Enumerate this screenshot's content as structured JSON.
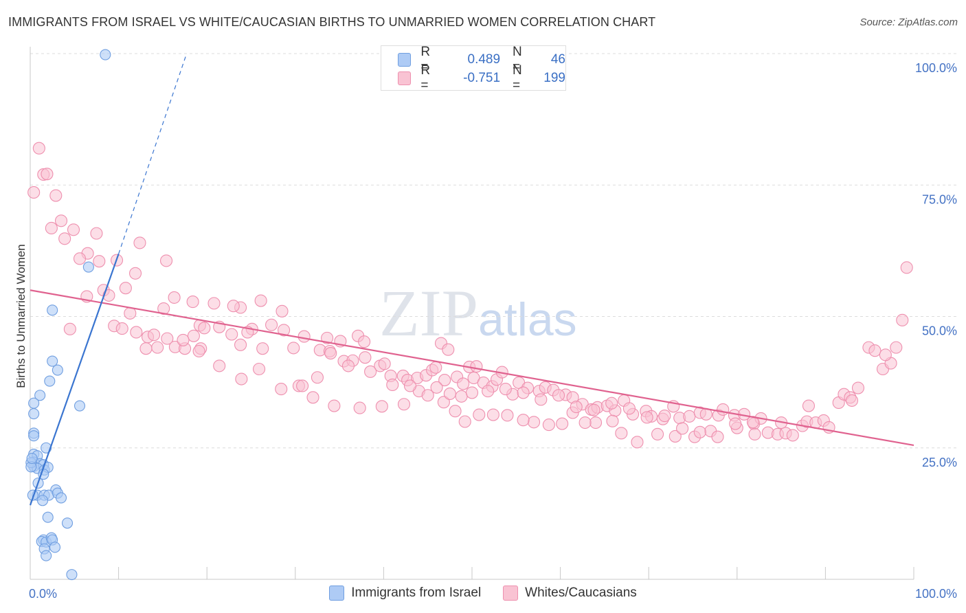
{
  "header": {
    "title": "IMMIGRANTS FROM ISRAEL VS WHITE/CAUCASIAN BIRTHS TO UNMARRIED WOMEN CORRELATION CHART",
    "source": "Source: ZipAtlas.com"
  },
  "watermark": {
    "zip": "ZIP",
    "atlas": "atlas"
  },
  "legend": {
    "rows": [
      {
        "r_label": "R =",
        "r_value": "0.489",
        "n_label": "N =",
        "n_value": "46",
        "color": "#aecbf5",
        "border": "#6f9ee0"
      },
      {
        "r_label": "R =",
        "r_value": "-0.751",
        "n_label": "N =",
        "n_value": "199",
        "color": "#f9c3d3",
        "border": "#ee8fae"
      }
    ]
  },
  "bottom_legend": [
    {
      "label": "Immigrants from Israel",
      "color": "#aecbf5",
      "border": "#6f9ee0"
    },
    {
      "label": "Whites/Caucasians",
      "color": "#f9c3d3",
      "border": "#ee8fae"
    }
  ],
  "chart_data": {
    "type": "scatter",
    "ylabel": "Births to Unmarried Women",
    "x_tick_labels": [
      "0.0%",
      "100.0%"
    ],
    "y_tick_labels": [
      "100.0%",
      "75.0%",
      "50.0%",
      "25.0%"
    ],
    "xlim": [
      0,
      100
    ],
    "ylim": [
      0,
      100
    ],
    "grid": true,
    "series": [
      {
        "name": "Immigrants from Israel",
        "color": "#6f9ee0",
        "fill": "#aecbf5",
        "trend": {
          "x": [
            0.0,
            10.0
          ],
          "y": [
            14.1,
            61.9
          ],
          "dash_to": [
            17.7,
            100.0
          ],
          "color": "#3a75d0"
        },
        "points": [
          [
            8.5,
            99.8
          ],
          [
            6.6,
            59.4
          ],
          [
            2.5,
            51.2
          ],
          [
            2.5,
            41.5
          ],
          [
            3.1,
            39.8
          ],
          [
            2.2,
            37.7
          ],
          [
            1.1,
            35.0
          ],
          [
            0.4,
            33.5
          ],
          [
            0.4,
            31.5
          ],
          [
            0.4,
            27.8
          ],
          [
            0.4,
            27.3
          ],
          [
            5.6,
            33.0
          ],
          [
            1.8,
            25.0
          ],
          [
            0.4,
            23.8
          ],
          [
            0.8,
            23.5
          ],
          [
            0.4,
            22.3
          ],
          [
            1.1,
            22.0
          ],
          [
            1.5,
            21.8
          ],
          [
            0.4,
            21.5
          ],
          [
            0.8,
            21.1
          ],
          [
            1.6,
            20.8
          ],
          [
            2.0,
            21.3
          ],
          [
            1.5,
            20.0
          ],
          [
            0.9,
            18.3
          ],
          [
            2.9,
            17.0
          ],
          [
            0.8,
            16.0
          ],
          [
            1.6,
            16.0
          ],
          [
            2.1,
            16.0
          ],
          [
            3.1,
            16.4
          ],
          [
            3.5,
            15.5
          ],
          [
            1.4,
            15.0
          ],
          [
            2.0,
            11.8
          ],
          [
            4.2,
            10.7
          ],
          [
            1.5,
            7.5
          ],
          [
            1.3,
            7.2
          ],
          [
            1.8,
            7.1
          ],
          [
            2.4,
            7.9
          ],
          [
            2.5,
            7.5
          ],
          [
            1.6,
            5.8
          ],
          [
            2.8,
            6.1
          ],
          [
            1.8,
            4.5
          ],
          [
            4.7,
            0.9
          ],
          [
            0.1,
            22.2
          ],
          [
            0.1,
            21.4
          ],
          [
            0.3,
            16.0
          ],
          [
            0.2,
            23.0
          ]
        ]
      },
      {
        "name": "Whites/Caucasians",
        "color": "#ee8fae",
        "fill": "#f9c3d3",
        "trend": {
          "x": [
            0.0,
            100.0
          ],
          "y": [
            55.0,
            25.5
          ],
          "color": "#e0628f"
        },
        "points": [
          [
            1.0,
            82.0
          ],
          [
            1.5,
            77.0
          ],
          [
            1.9,
            77.1
          ],
          [
            0.4,
            73.6
          ],
          [
            2.9,
            73.0
          ],
          [
            3.5,
            68.2
          ],
          [
            2.4,
            66.8
          ],
          [
            4.9,
            66.5
          ],
          [
            3.9,
            64.8
          ],
          [
            7.5,
            65.8
          ],
          [
            12.4,
            64.0
          ],
          [
            6.5,
            62.0
          ],
          [
            5.6,
            61.0
          ],
          [
            7.8,
            60.5
          ],
          [
            9.8,
            60.7
          ],
          [
            15.4,
            60.6
          ],
          [
            11.9,
            58.2
          ],
          [
            8.3,
            55.0
          ],
          [
            10.8,
            55.4
          ],
          [
            6.4,
            53.8
          ],
          [
            8.9,
            54.0
          ],
          [
            16.3,
            53.6
          ],
          [
            18.4,
            52.8
          ],
          [
            11.3,
            50.6
          ],
          [
            15.1,
            51.5
          ],
          [
            20.8,
            52.5
          ],
          [
            23.8,
            51.7
          ],
          [
            26.1,
            53.0
          ],
          [
            28.5,
            51.0
          ],
          [
            4.5,
            47.6
          ],
          [
            9.5,
            48.2
          ],
          [
            10.4,
            47.7
          ],
          [
            13.3,
            46.1
          ],
          [
            14.0,
            46.5
          ],
          [
            19.2,
            48.3
          ],
          [
            19.7,
            47.8
          ],
          [
            21.4,
            48.0
          ],
          [
            25.1,
            47.6
          ],
          [
            27.3,
            48.4
          ],
          [
            28.7,
            47.4
          ],
          [
            24.6,
            47.0
          ],
          [
            22.8,
            46.6
          ],
          [
            18.5,
            46.3
          ],
          [
            14.4,
            44.1
          ],
          [
            16.4,
            44.2
          ],
          [
            13.1,
            43.9
          ],
          [
            17.5,
            43.9
          ],
          [
            19.3,
            43.9
          ],
          [
            23.8,
            44.6
          ],
          [
            26.3,
            43.9
          ],
          [
            29.8,
            44.0
          ],
          [
            31.0,
            46.2
          ],
          [
            33.6,
            45.9
          ],
          [
            35.1,
            45.3
          ],
          [
            37.1,
            46.3
          ],
          [
            37.8,
            45.2
          ],
          [
            32.8,
            43.6
          ],
          [
            33.9,
            43.4
          ],
          [
            35.5,
            41.5
          ],
          [
            36.5,
            41.6
          ],
          [
            37.9,
            42.2
          ],
          [
            39.6,
            40.6
          ],
          [
            40.1,
            41.0
          ],
          [
            40.8,
            38.7
          ],
          [
            42.2,
            38.7
          ],
          [
            42.7,
            37.9
          ],
          [
            43.8,
            38.3
          ],
          [
            44.8,
            38.8
          ],
          [
            45.5,
            39.8
          ],
          [
            45.9,
            40.3
          ],
          [
            46.9,
            37.9
          ],
          [
            46.5,
            44.9
          ],
          [
            47.3,
            43.7
          ],
          [
            48.3,
            38.5
          ],
          [
            49.0,
            37.2
          ],
          [
            49.7,
            40.4
          ],
          [
            50.5,
            40.5
          ],
          [
            50.2,
            38.3
          ],
          [
            51.3,
            37.4
          ],
          [
            52.3,
            36.7
          ],
          [
            52.8,
            38.0
          ],
          [
            53.4,
            39.4
          ],
          [
            54.6,
            35.2
          ],
          [
            55.3,
            37.4
          ],
          [
            56.3,
            36.4
          ],
          [
            57.6,
            35.8
          ],
          [
            58.3,
            36.5
          ],
          [
            59.2,
            36.0
          ],
          [
            60.6,
            35.1
          ],
          [
            61.4,
            34.6
          ],
          [
            62.5,
            33.3
          ],
          [
            63.5,
            32.3
          ],
          [
            64.2,
            32.7
          ],
          [
            65.3,
            33.0
          ],
          [
            66.2,
            32.1
          ],
          [
            67.2,
            34.0
          ],
          [
            68.2,
            31.4
          ],
          [
            69.7,
            32.0
          ],
          [
            70.3,
            31.0
          ],
          [
            71.6,
            30.5
          ],
          [
            72.8,
            32.9
          ],
          [
            73.5,
            30.7
          ],
          [
            74.6,
            31.0
          ],
          [
            75.8,
            31.7
          ],
          [
            76.5,
            31.4
          ],
          [
            77.9,
            31.2
          ],
          [
            78.4,
            32.3
          ],
          [
            79.7,
            31.2
          ],
          [
            80.8,
            31.4
          ],
          [
            81.9,
            29.6
          ],
          [
            82.7,
            30.6
          ],
          [
            83.5,
            27.9
          ],
          [
            84.6,
            27.6
          ],
          [
            85.5,
            27.8
          ],
          [
            86.3,
            27.4
          ],
          [
            87.4,
            29.2
          ],
          [
            87.9,
            30.0
          ],
          [
            88.9,
            29.8
          ],
          [
            89.8,
            30.2
          ],
          [
            90.4,
            28.9
          ],
          [
            91.5,
            33.6
          ],
          [
            92.1,
            35.2
          ],
          [
            92.8,
            34.6
          ],
          [
            93.7,
            36.4
          ],
          [
            94.9,
            44.1
          ],
          [
            95.6,
            43.5
          ],
          [
            96.5,
            40.0
          ],
          [
            97.4,
            41.1
          ],
          [
            98.0,
            44.1
          ],
          [
            98.7,
            49.3
          ],
          [
            99.2,
            59.3
          ],
          [
            96.8,
            42.7
          ],
          [
            93.0,
            34.0
          ],
          [
            88.1,
            33.0
          ],
          [
            85.0,
            29.8
          ],
          [
            82.0,
            27.6
          ],
          [
            80.0,
            28.8
          ],
          [
            77.0,
            28.2
          ],
          [
            75.2,
            27.1
          ],
          [
            73.0,
            27.2
          ],
          [
            71.0,
            27.6
          ],
          [
            68.7,
            26.1
          ],
          [
            66.9,
            27.8
          ],
          [
            65.9,
            30.1
          ],
          [
            64.0,
            29.8
          ],
          [
            62.8,
            29.8
          ],
          [
            61.4,
            31.7
          ],
          [
            60.2,
            29.6
          ],
          [
            58.7,
            29.4
          ],
          [
            57.0,
            29.9
          ],
          [
            55.8,
            30.3
          ],
          [
            54.0,
            31.2
          ],
          [
            52.4,
            31.3
          ],
          [
            50.8,
            31.3
          ],
          [
            49.2,
            30.0
          ],
          [
            48.1,
            32.0
          ],
          [
            46.8,
            33.7
          ],
          [
            44.0,
            35.8
          ],
          [
            42.3,
            33.3
          ],
          [
            39.8,
            32.9
          ],
          [
            37.3,
            32.6
          ],
          [
            34.4,
            33.0
          ],
          [
            32.0,
            34.6
          ],
          [
            30.4,
            36.8
          ],
          [
            28.4,
            36.2
          ],
          [
            25.9,
            40.0
          ],
          [
            23.9,
            38.1
          ],
          [
            21.4,
            40.6
          ],
          [
            19.1,
            43.4
          ],
          [
            17.3,
            45.5
          ],
          [
            15.5,
            45.8
          ],
          [
            12.0,
            47.0
          ],
          [
            23.0,
            52.0
          ],
          [
            30.8,
            36.8
          ],
          [
            32.5,
            38.4
          ],
          [
            34.0,
            43.0
          ],
          [
            36.0,
            40.6
          ],
          [
            38.5,
            39.5
          ],
          [
            41.0,
            37.0
          ],
          [
            43.0,
            36.8
          ],
          [
            45.0,
            35.0
          ],
          [
            46.0,
            36.5
          ],
          [
            47.5,
            35.3
          ],
          [
            48.8,
            34.8
          ],
          [
            50.0,
            35.5
          ],
          [
            51.8,
            35.8
          ],
          [
            53.8,
            36.2
          ],
          [
            55.8,
            35.5
          ],
          [
            57.8,
            34.2
          ],
          [
            59.8,
            35.0
          ],
          [
            61.8,
            32.8
          ],
          [
            63.8,
            32.2
          ],
          [
            65.8,
            33.5
          ],
          [
            67.8,
            32.5
          ],
          [
            69.8,
            30.8
          ],
          [
            71.8,
            31.1
          ],
          [
            73.8,
            28.7
          ],
          [
            75.8,
            28.0
          ],
          [
            77.8,
            27.1
          ],
          [
            79.8,
            29.6
          ],
          [
            81.8,
            29.9
          ]
        ]
      }
    ]
  }
}
